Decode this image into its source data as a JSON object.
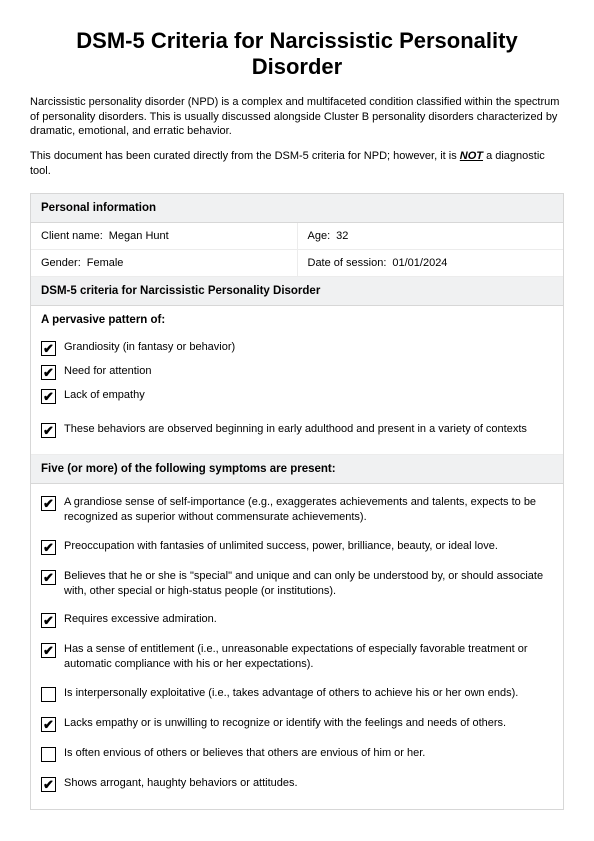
{
  "title": "DSM-5 Criteria for Narcissistic Personality Disorder",
  "intro1": "Narcissistic personality disorder (NPD) is a complex and multifaceted condition classified within the spectrum of personality disorders. This is usually discussed alongside Cluster B personality disorders characterized by dramatic, emotional, and erratic behavior.",
  "intro2_a": "This document has been curated directly from the DSM-5 criteria for NPD; however, it is ",
  "intro2_not": "NOT",
  "intro2_b": " a diagnostic tool.",
  "personal_info": {
    "header": "Personal information",
    "client_label": "Client name:",
    "client_value": "Megan Hunt",
    "age_label": "Age:",
    "age_value": "32",
    "gender_label": "Gender:",
    "gender_value": "Female",
    "date_label": "Date of session:",
    "date_value": "01/01/2024"
  },
  "criteria_header": "DSM-5 criteria for Narcissistic Personality Disorder",
  "pervasive": {
    "title": "A pervasive pattern of:",
    "items": [
      {
        "checked": true,
        "text": "Grandiosity (in fantasy or behavior)"
      },
      {
        "checked": true,
        "text": "Need for attention"
      },
      {
        "checked": true,
        "text": "Lack of empathy"
      }
    ],
    "context": {
      "checked": true,
      "text": "These behaviors are observed beginning in early adulthood and present in a variety of contexts"
    }
  },
  "symptoms": {
    "header": "Five (or more) of the following symptoms are present:",
    "items": [
      {
        "checked": true,
        "text": "A grandiose sense of self-importance (e.g., exaggerates achievements and talents, expects to be recognized as superior without commensurate achievements)."
      },
      {
        "checked": true,
        "text": "Preoccupation with fantasies of unlimited success, power, brilliance, beauty, or ideal love."
      },
      {
        "checked": true,
        "text": "Believes that he or she is \"special\" and unique and can only be understood by, or should associate with, other special or high-status people (or institutions)."
      },
      {
        "checked": true,
        "text": "Requires excessive admiration."
      },
      {
        "checked": true,
        "text": "Has a sense of entitlement (i.e., unreasonable expectations of especially favorable treatment or automatic compliance with his or her expectations)."
      },
      {
        "checked": false,
        "text": "Is interpersonally exploitative (i.e., takes advantage of others to achieve his or her own  ends)."
      },
      {
        "checked": true,
        "text": "Lacks empathy or is unwilling to recognize or identify with the feelings and needs of others."
      },
      {
        "checked": false,
        "text": "Is often envious of others or believes that others are envious of him or her."
      },
      {
        "checked": true,
        "text": "Shows arrogant, haughty behaviors or attitudes."
      }
    ]
  },
  "checkmark": "✔"
}
